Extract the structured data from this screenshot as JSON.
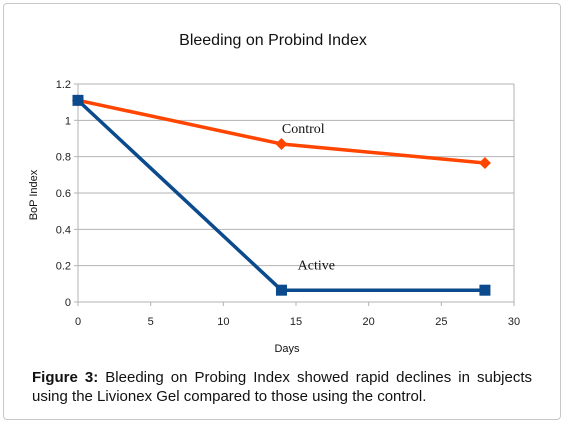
{
  "chart_data": {
    "type": "line",
    "title": "Bleeding on Probind Index",
    "xlabel": "Days",
    "ylabel": "BoP Index",
    "xlim": [
      0,
      30
    ],
    "ylim": [
      0,
      1.2
    ],
    "xticks": [
      "0",
      "5",
      "10",
      "15",
      "20",
      "25",
      "30"
    ],
    "yticks": [
      "0",
      "0.2",
      "0.4",
      "0.6",
      "0.8",
      "1",
      "1.2"
    ],
    "grid": "horizontal",
    "series": [
      {
        "name": "Control",
        "color": "#ff4500",
        "marker": "diamond",
        "x": [
          0,
          14,
          28
        ],
        "y": [
          1.11,
          0.87,
          0.765
        ]
      },
      {
        "name": "Active",
        "color": "#0b4a8c",
        "marker": "square",
        "x": [
          0,
          14,
          28
        ],
        "y": [
          1.11,
          0.065,
          0.065
        ]
      }
    ]
  },
  "caption": {
    "label": "Figure 3:",
    "text": "Bleeding on Probing Index showed rapid declines in subjects using the Livionex Gel compared to those using the control."
  }
}
